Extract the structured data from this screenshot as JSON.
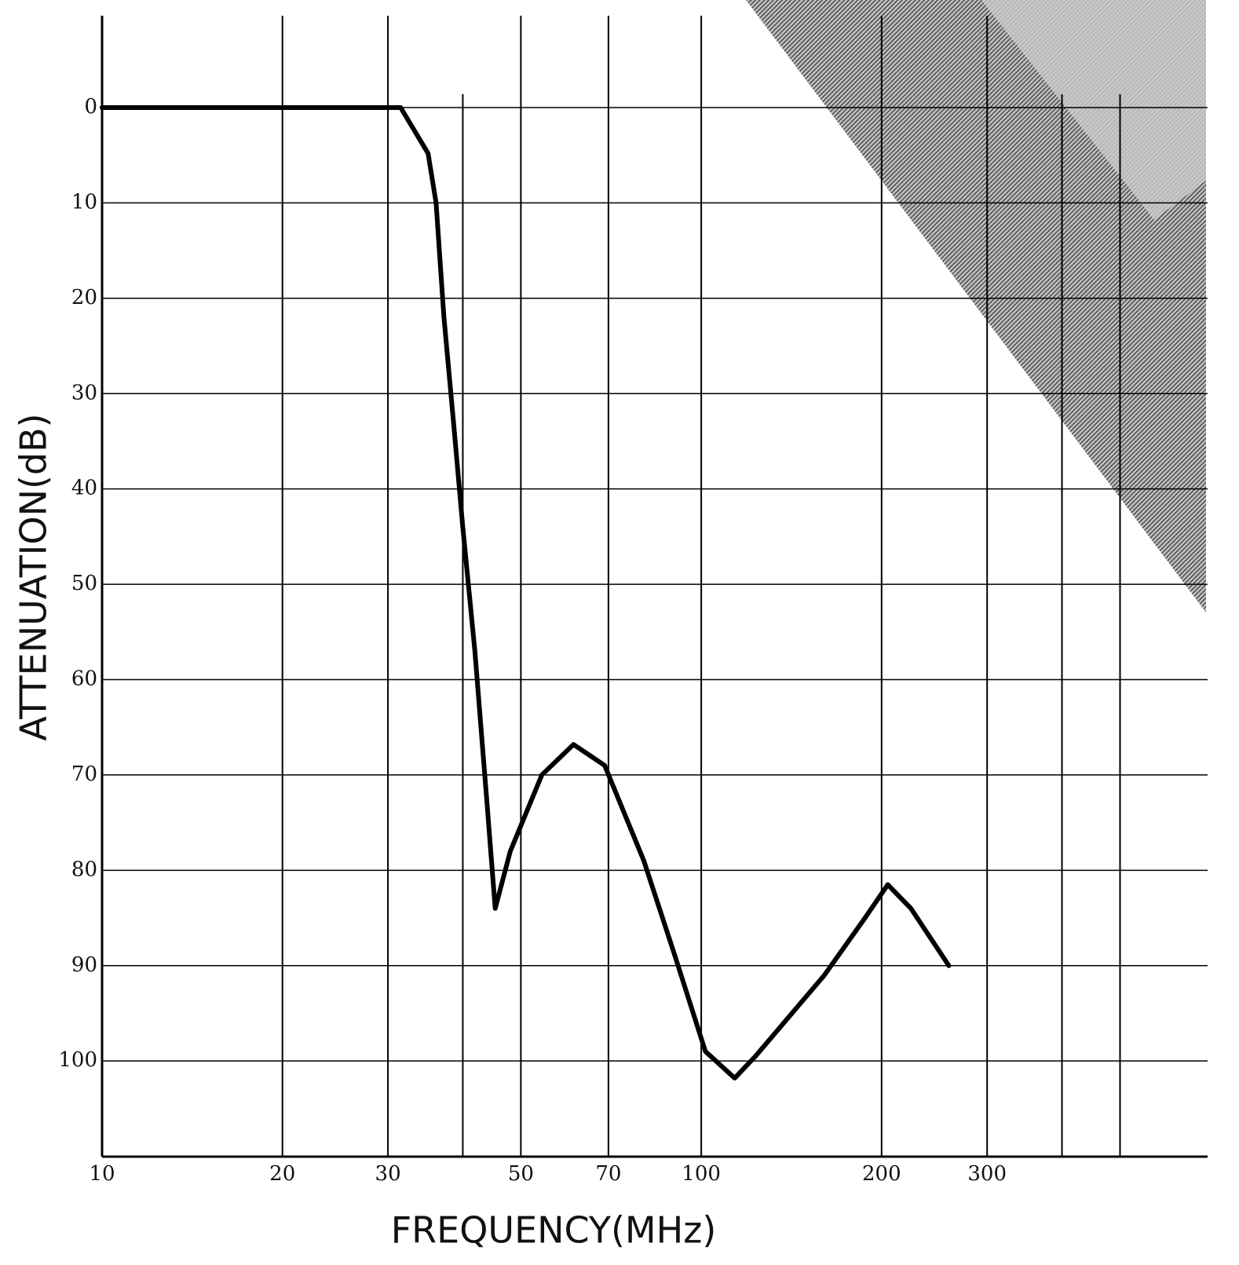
{
  "chart_data": {
    "type": "line",
    "x_label": "FREQUENCY(MHz)",
    "y_label": "ATTENUATION(dB)",
    "xlog": true,
    "xlim": [
      10,
      700
    ],
    "xticks": [
      10,
      20,
      30,
      50,
      70,
      100,
      200,
      300
    ],
    "x_minor_grid": [
      40,
      400,
      500
    ],
    "ylim": [
      -10,
      110
    ],
    "y_inverted": true,
    "yticks": [
      0,
      10,
      20,
      30,
      40,
      50,
      60,
      70,
      80,
      90,
      100
    ],
    "grid": true,
    "series": [
      {
        "color": "#000000",
        "x": [
          10,
          20,
          30,
          31.5,
          35.0,
          36.1,
          37.2,
          38.6,
          40.0,
          41.9,
          43.9,
          45.3,
          48.0,
          54.2,
          61.2,
          69.0,
          80.2,
          90.4,
          101.6,
          113.7,
          123.2,
          160.5,
          187.6,
          204.8,
          223.8,
          259
        ],
        "values": [
          0,
          0,
          0,
          0,
          4.8,
          10,
          22,
          33,
          44,
          57,
          73,
          84,
          78,
          70,
          66.8,
          69,
          79,
          89,
          99,
          101.8,
          99.5,
          91,
          85,
          81.5,
          84,
          90
        ]
      }
    ]
  }
}
